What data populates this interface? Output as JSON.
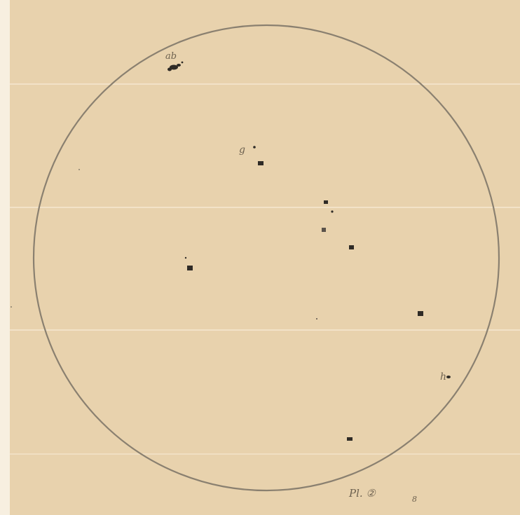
{
  "image": {
    "subject": "solar-disk-sunspot-drawing",
    "colors": {
      "paper": "#e8d2ad",
      "paper_edge": "#f7efe0",
      "ink_circle": "#8a8070",
      "spot": "#2f2b26",
      "pencil": "#6e6250"
    }
  },
  "annotations": {
    "spot_group_top_left": "ab",
    "spot_group_upper": "g",
    "spot_group_right": "h",
    "plate_label": "Pl. ②",
    "plate_number": "8"
  }
}
